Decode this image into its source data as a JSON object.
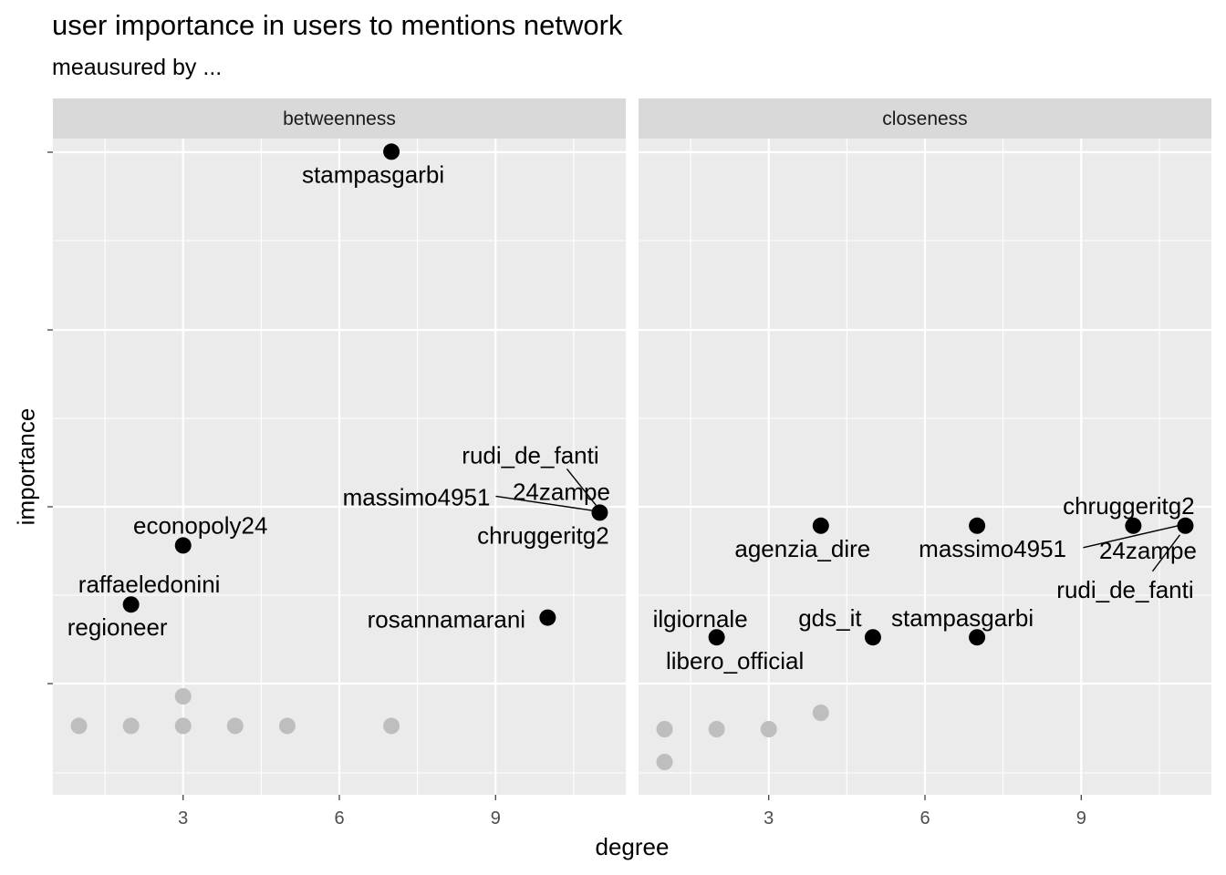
{
  "chart_data": {
    "type": "scatter",
    "title": "user importance in users to mentions network",
    "subtitle": "meausured by ...",
    "xlabel": "degree",
    "ylabel": "importance",
    "x_ticks": [
      3,
      6,
      9
    ],
    "xlim": [
      0.5,
      11.5
    ],
    "y_ticks_labeled": false,
    "grid": true,
    "colors": {
      "highlight": "#000000",
      "other": "#bebebe",
      "panel": "#ebebeb",
      "strip": "#d9d9d9",
      "grid": "#ffffff"
    },
    "panels": [
      {
        "name": "betweenness",
        "points": [
          {
            "x": 7,
            "y": 0.93,
            "label": "stampasgarbi",
            "highlight": true
          },
          {
            "x": 11,
            "y": 0.38,
            "label": "rudi_de_fanti",
            "highlight": true
          },
          {
            "x": 11,
            "y": 0.38,
            "label": "24zampe",
            "highlight": true
          },
          {
            "x": 11,
            "y": 0.38,
            "label": "massimo4951",
            "highlight": true
          },
          {
            "x": 11,
            "y": 0.38,
            "label": "chruggeritg2",
            "highlight": true
          },
          {
            "x": 3,
            "y": 0.33,
            "label": "econopoly24",
            "highlight": true
          },
          {
            "x": 2,
            "y": 0.24,
            "label": "raffaeledonini",
            "highlight": true
          },
          {
            "x": 2,
            "y": 0.24,
            "label": "regioneer",
            "highlight": true
          },
          {
            "x": 10,
            "y": 0.22,
            "label": "rosannamarani",
            "highlight": true
          },
          {
            "x": 3,
            "y": 0.1,
            "highlight": false
          },
          {
            "x": 1,
            "y": 0.055,
            "highlight": false
          },
          {
            "x": 2,
            "y": 0.055,
            "highlight": false
          },
          {
            "x": 3,
            "y": 0.055,
            "highlight": false
          },
          {
            "x": 4,
            "y": 0.055,
            "highlight": false
          },
          {
            "x": 5,
            "y": 0.055,
            "highlight": false
          },
          {
            "x": 7,
            "y": 0.055,
            "highlight": false
          }
        ]
      },
      {
        "name": "closeness",
        "points": [
          {
            "x": 4,
            "y": 0.36,
            "label": "agenzia_dire",
            "highlight": true
          },
          {
            "x": 7,
            "y": 0.36,
            "label": "massimo4951",
            "highlight": true
          },
          {
            "x": 10,
            "y": 0.36,
            "label": "chruggeritg2",
            "highlight": true
          },
          {
            "x": 11,
            "y": 0.36,
            "label": "24zampe",
            "highlight": true
          },
          {
            "x": 11,
            "y": 0.36,
            "label": "rudi_de_fanti",
            "highlight": true
          },
          {
            "x": 2,
            "y": 0.19,
            "label": "ilgiornale",
            "highlight": true
          },
          {
            "x": 2,
            "y": 0.19,
            "label": "libero_official",
            "highlight": true
          },
          {
            "x": 5,
            "y": 0.19,
            "label": "gds_it",
            "highlight": true
          },
          {
            "x": 7,
            "y": 0.19,
            "label": "stampasgarbi",
            "highlight": true
          },
          {
            "x": 4,
            "y": 0.075,
            "highlight": false
          },
          {
            "x": 1,
            "y": 0.05,
            "highlight": false
          },
          {
            "x": 2,
            "y": 0.05,
            "highlight": false
          },
          {
            "x": 3,
            "y": 0.05,
            "highlight": false
          },
          {
            "x": 1,
            "y": 0.0,
            "highlight": false
          }
        ]
      }
    ]
  }
}
